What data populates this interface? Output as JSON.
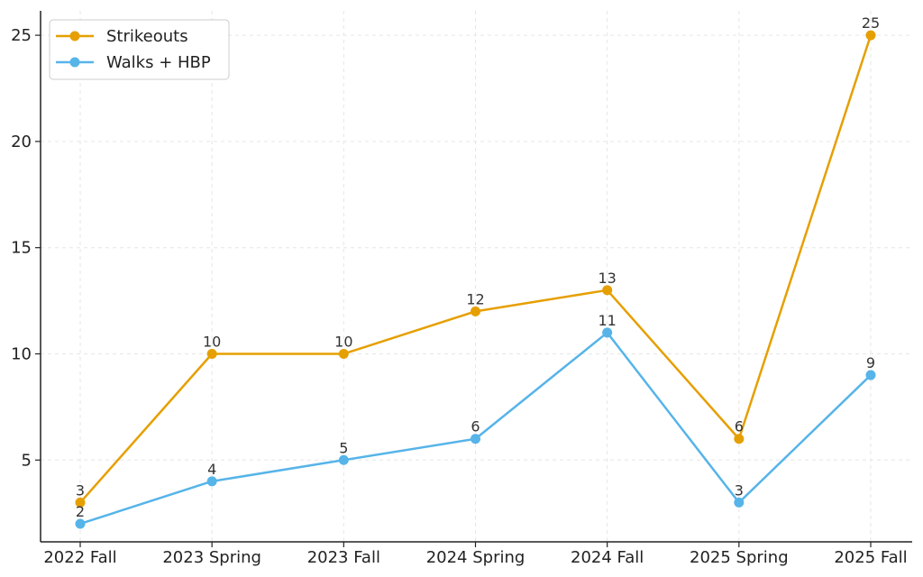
{
  "chart_data": {
    "type": "line",
    "title": "",
    "xlabel": "",
    "ylabel": "",
    "categories": [
      "2022 Fall",
      "2023 Spring",
      "2023 Fall",
      "2024 Spring",
      "2024 Fall",
      "2025 Spring",
      "2025 Fall"
    ],
    "series": [
      {
        "name": "Strikeouts",
        "color": "#E69F00",
        "values": [
          3,
          10,
          10,
          12,
          13,
          6,
          25
        ]
      },
      {
        "name": "Walks + HBP",
        "color": "#56B4E9",
        "values": [
          2,
          4,
          5,
          6,
          11,
          3,
          9
        ]
      }
    ],
    "ylim": [
      1.15,
      26.15
    ],
    "yticks": [
      5,
      10,
      15,
      20,
      25
    ],
    "grid": true,
    "legend_position": "top-left",
    "data_labels": true
  }
}
